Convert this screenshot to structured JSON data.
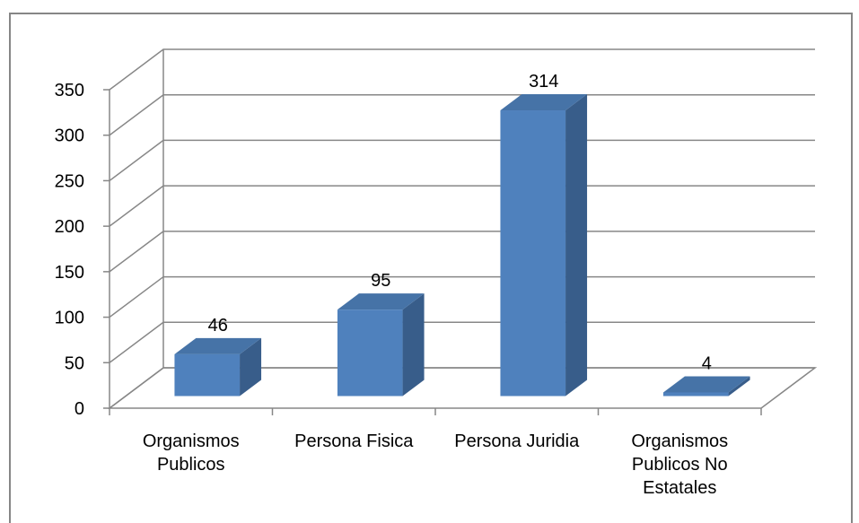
{
  "chart_data": {
    "type": "bar3d",
    "categories": [
      "Organismos Publicos",
      "Persona Fisica",
      "Persona Juridia",
      "Organismos Publicos No Estatales"
    ],
    "values": [
      46,
      95,
      314,
      4
    ],
    "color": "#4f81bd",
    "ylim": [
      0,
      350
    ],
    "yticks": [
      0,
      50,
      100,
      150,
      200,
      250,
      300,
      350
    ],
    "grid": true
  }
}
